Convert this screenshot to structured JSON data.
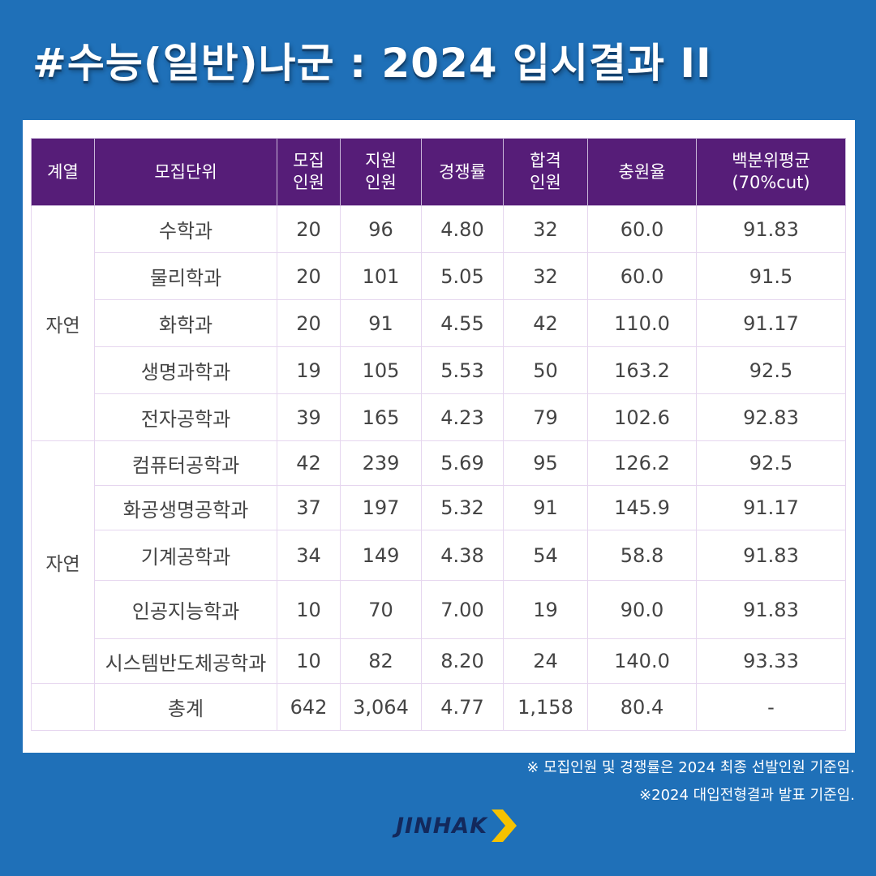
{
  "title": "#수능(일반)나군 : 2024 입시결과 II",
  "table": {
    "headers": [
      [
        "계열"
      ],
      [
        "모집단위"
      ],
      [
        "모집",
        "인원"
      ],
      [
        "지원",
        "인원"
      ],
      [
        "경쟁률"
      ],
      [
        "합격",
        "인원"
      ],
      [
        "충원율"
      ],
      [
        "백분위평균",
        "(70%cut)"
      ]
    ],
    "groups": [
      "자연",
      "자연"
    ],
    "rows": [
      [
        "수학과",
        "20",
        "96",
        "4.80",
        "32",
        "60.0",
        "91.83"
      ],
      [
        "물리학과",
        "20",
        "101",
        "5.05",
        "32",
        "60.0",
        "91.5"
      ],
      [
        "화학과",
        "20",
        "91",
        "4.55",
        "42",
        "110.0",
        "91.17"
      ],
      [
        "생명과학과",
        "19",
        "105",
        "5.53",
        "50",
        "163.2",
        "92.5"
      ],
      [
        "전자공학과",
        "39",
        "165",
        "4.23",
        "79",
        "102.6",
        "92.83"
      ],
      [
        "컴퓨터공학과",
        "42",
        "239",
        "5.69",
        "95",
        "126.2",
        "92.5"
      ],
      [
        "화공생명공학과",
        "37",
        "197",
        "5.32",
        "91",
        "145.9",
        "91.17"
      ],
      [
        "기계공학과",
        "34",
        "149",
        "4.38",
        "54",
        "58.8",
        "91.83"
      ],
      [
        "인공지능학과",
        "10",
        "70",
        "7.00",
        "19",
        "90.0",
        "91.83"
      ],
      [
        "시스템반도체공학과",
        "10",
        "82",
        "8.20",
        "24",
        "140.0",
        "93.33"
      ]
    ],
    "total": [
      "총계",
      "642",
      "3,064",
      "4.77",
      "1,158",
      "80.4",
      "-"
    ]
  },
  "footnotes": [
    "※ 모집인원 및 경쟁률은 2024 최종 선발인원 기준임.",
    "※2024 대입전형결과 발표 기준임."
  ],
  "logo": {
    "text": "JINHAK",
    "icon": "chevron-right-icon"
  },
  "colors": {
    "background": "#1f70b8",
    "header": "#561d78",
    "logo_text": "#13295c",
    "logo_arrow": "#f6c200"
  }
}
